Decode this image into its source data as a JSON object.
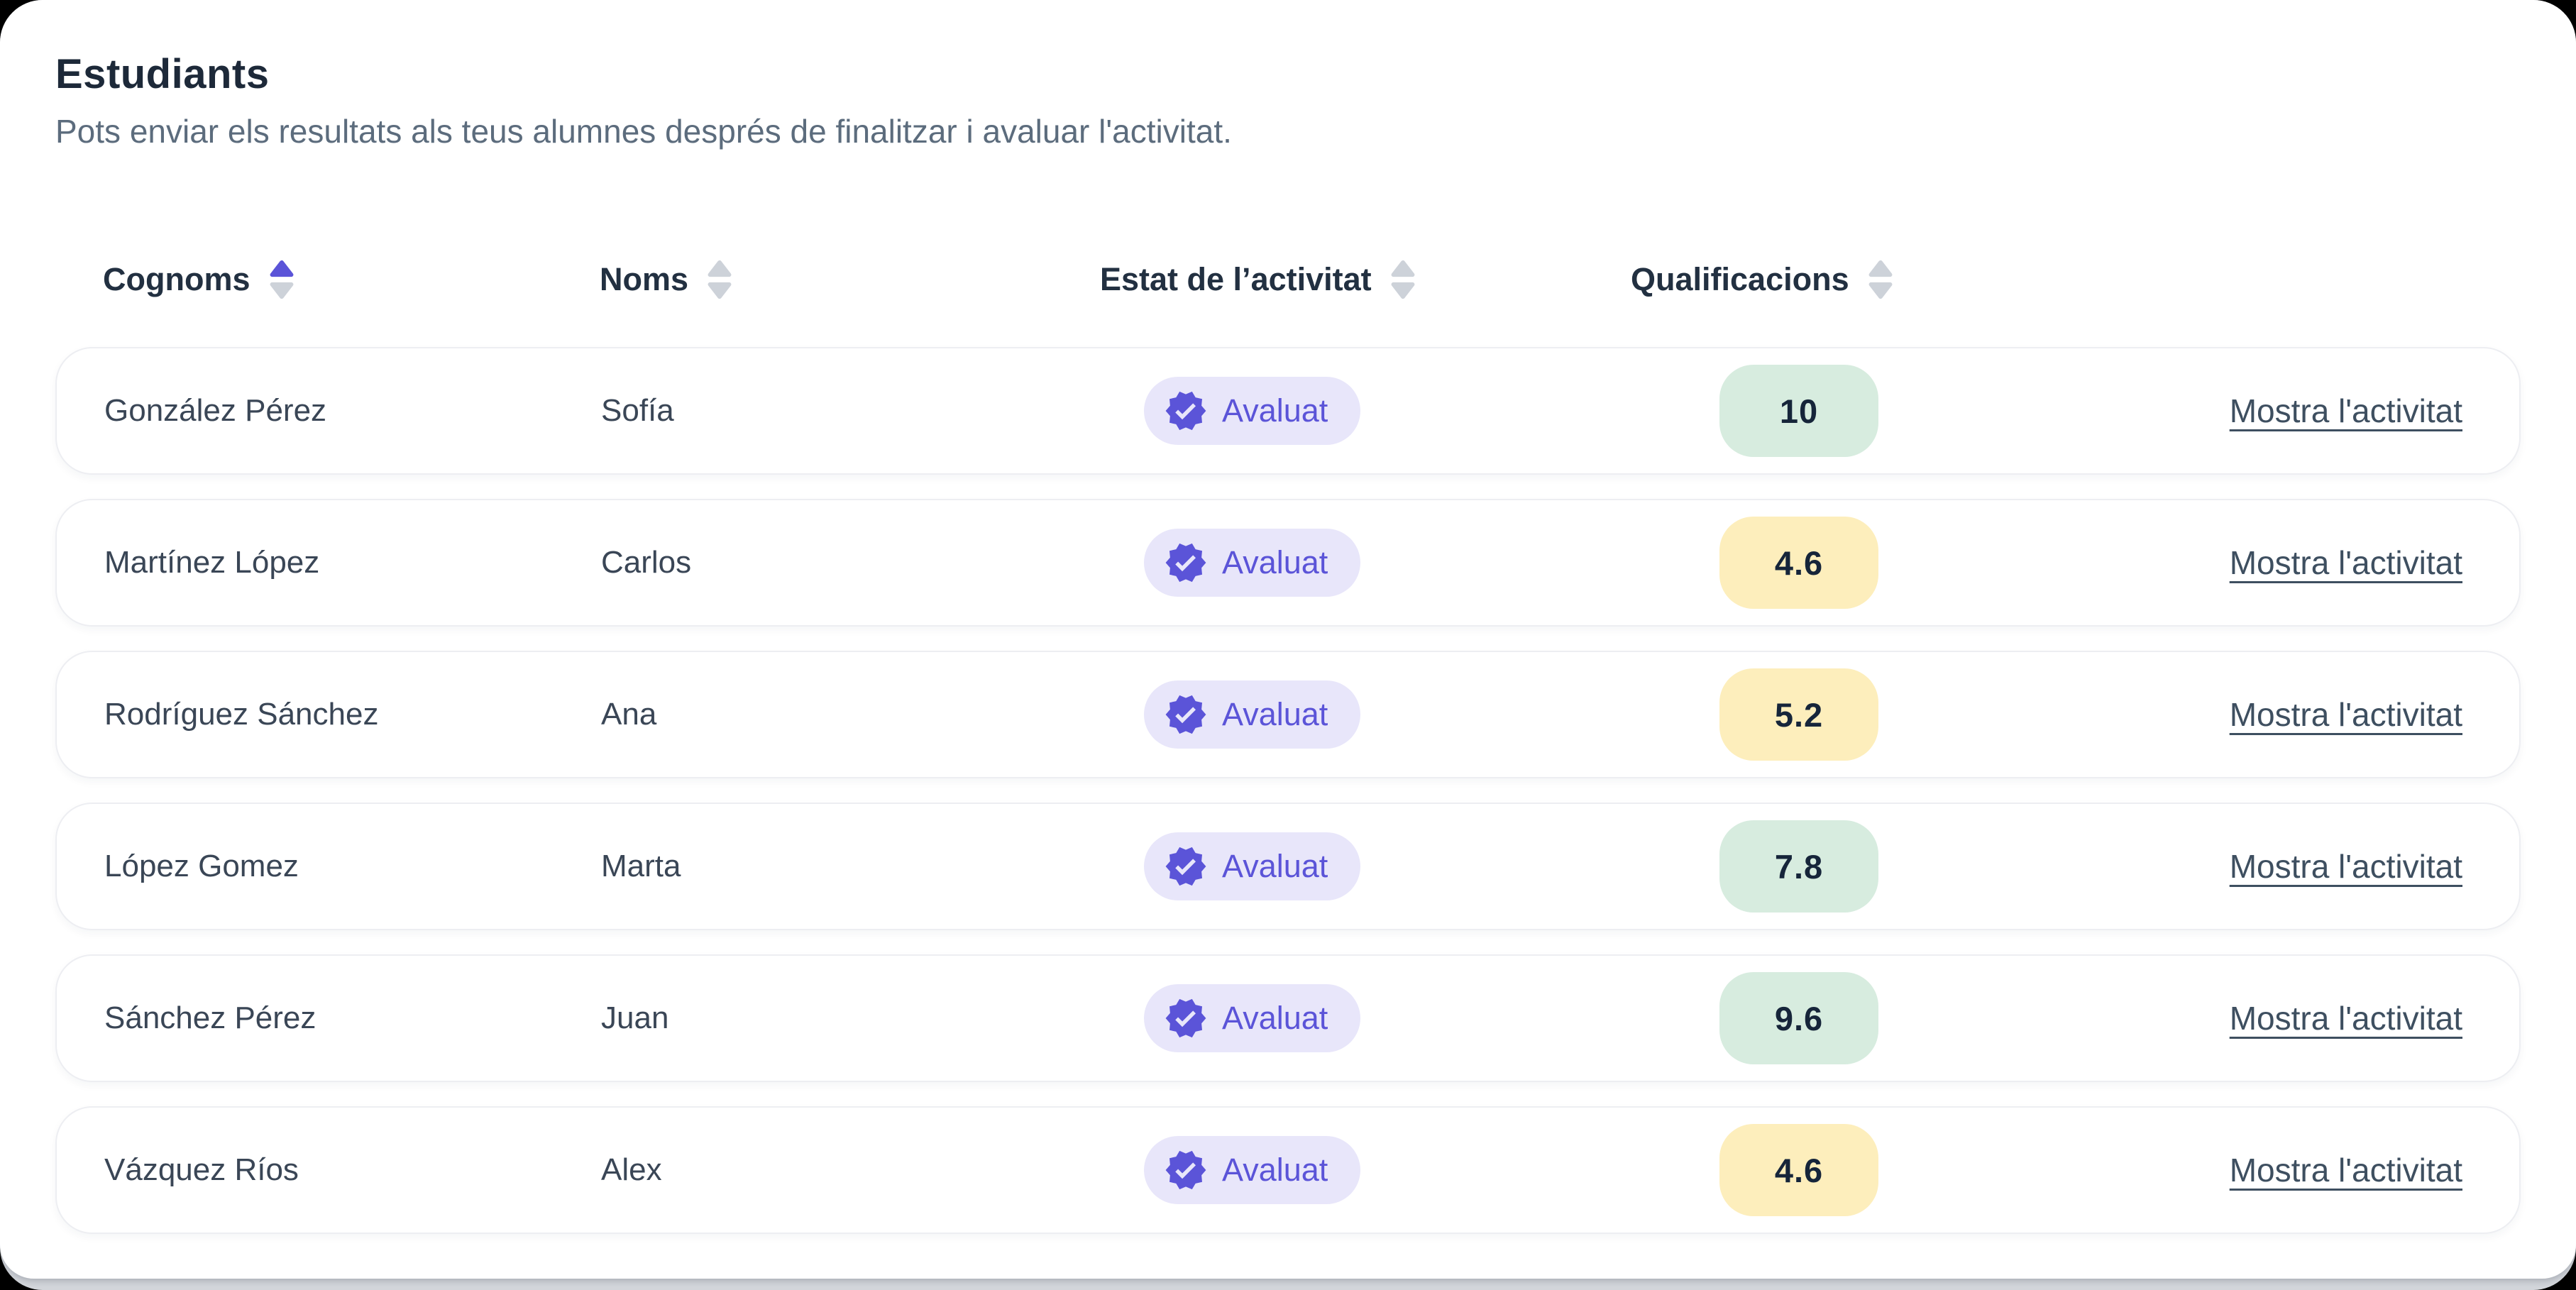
{
  "panel": {
    "title": "Estudiants",
    "subtitle": "Pots enviar els resultats als teus alumnes després de finalitzar i avaluar l'activitat."
  },
  "table": {
    "columns": [
      {
        "label": "Cognoms",
        "sort": "asc"
      },
      {
        "label": "Noms",
        "sort": "none"
      },
      {
        "label": "Estat de l’activitat",
        "sort": "none"
      },
      {
        "label": "Qualificacions",
        "sort": "none"
      }
    ],
    "action_label": "Mostra l'activitat",
    "rows": [
      {
        "cognoms": "González Pérez",
        "noms": "Sofía",
        "estat": "Avaluat",
        "qualificacio": "10",
        "grade_color": "green"
      },
      {
        "cognoms": "Martínez López",
        "noms": "Carlos",
        "estat": "Avaluat",
        "qualificacio": "4.6",
        "grade_color": "yellow"
      },
      {
        "cognoms": "Rodríguez Sánchez",
        "noms": "Ana",
        "estat": "Avaluat",
        "qualificacio": "5.2",
        "grade_color": "yellow"
      },
      {
        "cognoms": "López Gomez",
        "noms": "Marta",
        "estat": "Avaluat",
        "qualificacio": "7.8",
        "grade_color": "green"
      },
      {
        "cognoms": "Sánchez Pérez",
        "noms": "Juan",
        "estat": "Avaluat",
        "qualificacio": "9.6",
        "grade_color": "green"
      },
      {
        "cognoms": "Vázquez Ríos",
        "noms": "Alex",
        "estat": "Avaluat",
        "qualificacio": "4.6",
        "grade_color": "yellow"
      }
    ]
  },
  "colors": {
    "accent": "#5b54d8",
    "status_badge_bg": "#e8e6fa",
    "grade_green_bg": "#d7ecdf",
    "grade_yellow_bg": "#fdeebc",
    "grade_text": "#16253a",
    "heading_text": "#1d2939",
    "muted_text": "#5c6c7d",
    "link_text": "#3e4f60",
    "row_border": "#edeef2",
    "sort_inactive": "#cdd2d9"
  }
}
